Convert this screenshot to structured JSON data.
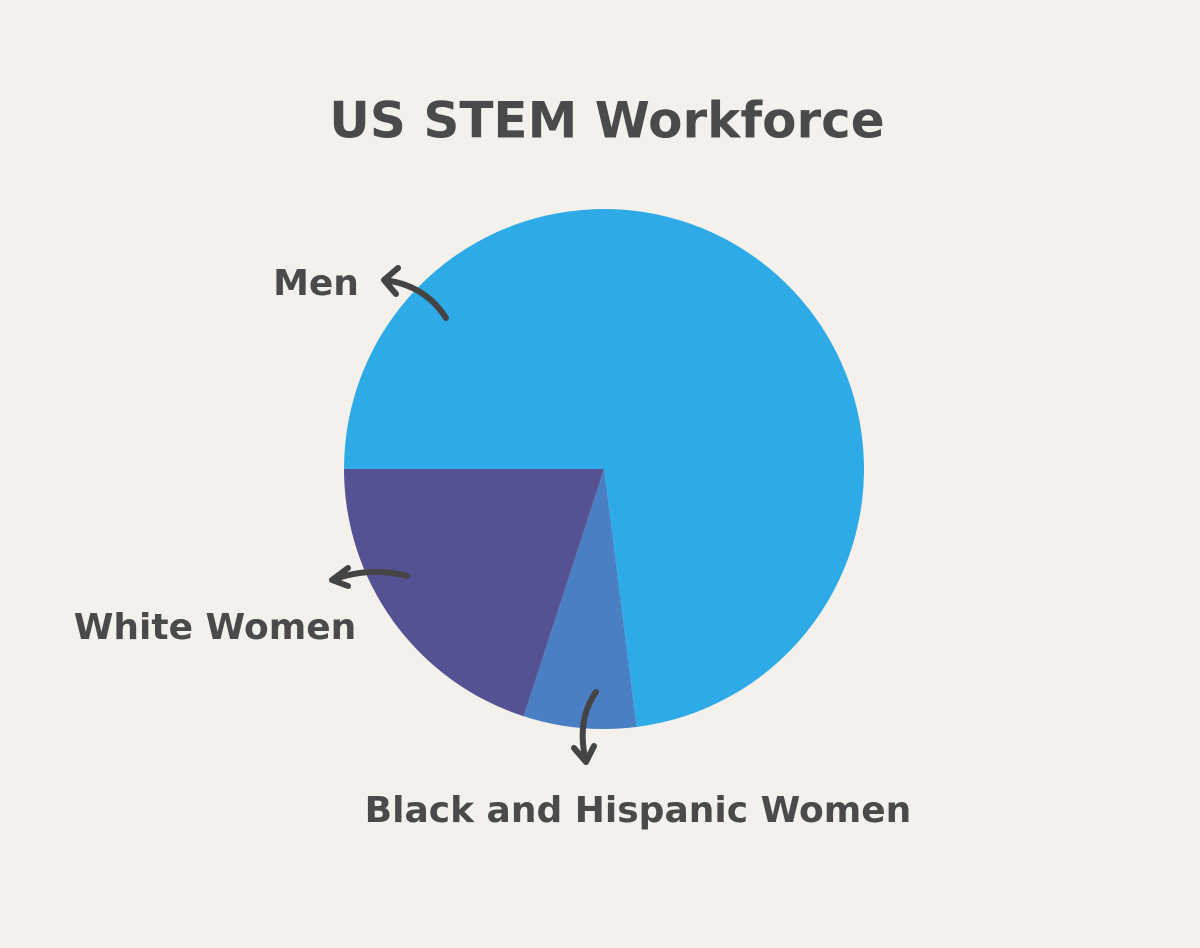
{
  "chart_data": {
    "type": "pie",
    "title": "US STEM Workforce",
    "categories": [
      "Men",
      "Black and Hispanic Women",
      "White Women"
    ],
    "values": [
      73,
      7,
      20
    ],
    "colors": [
      "#2eaae6",
      "#4a7fc4",
      "#545292"
    ]
  }
}
